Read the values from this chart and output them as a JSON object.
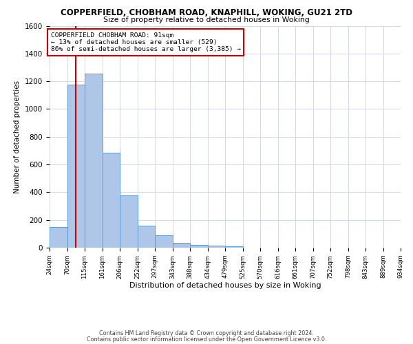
{
  "title": "COPPERFIELD, CHOBHAM ROAD, KNAPHILL, WOKING, GU21 2TD",
  "subtitle": "Size of property relative to detached houses in Woking",
  "xlabel": "Distribution of detached houses by size in Woking",
  "ylabel": "Number of detached properties",
  "footer_line1": "Contains HM Land Registry data © Crown copyright and database right 2024.",
  "footer_line2": "Contains public sector information licensed under the Open Government Licence v3.0.",
  "bin_edges": [
    24,
    70,
    115,
    161,
    206,
    252,
    297,
    343,
    388,
    434,
    479,
    525,
    570,
    616,
    661,
    707,
    752,
    798,
    843,
    889,
    934
  ],
  "bin_heights": [
    150,
    1175,
    1255,
    685,
    375,
    160,
    90,
    35,
    22,
    17,
    8,
    0,
    0,
    0,
    0,
    0,
    0,
    0,
    0,
    0
  ],
  "bar_facecolor": "#aec6e8",
  "bar_edgecolor": "#5b9bd5",
  "property_size": 91,
  "vline_color": "#cc0000",
  "annotation_title": "COPPERFIELD CHOBHAM ROAD: 91sqm",
  "annotation_line2": "← 13% of detached houses are smaller (529)",
  "annotation_line3": "86% of semi-detached houses are larger (3,385) →",
  "box_edgecolor": "#cc0000",
  "ylim": [
    0,
    1600
  ],
  "yticks": [
    0,
    200,
    400,
    600,
    800,
    1000,
    1200,
    1400,
    1600
  ],
  "background_color": "#ffffff",
  "grid_color": "#d0d8e8"
}
